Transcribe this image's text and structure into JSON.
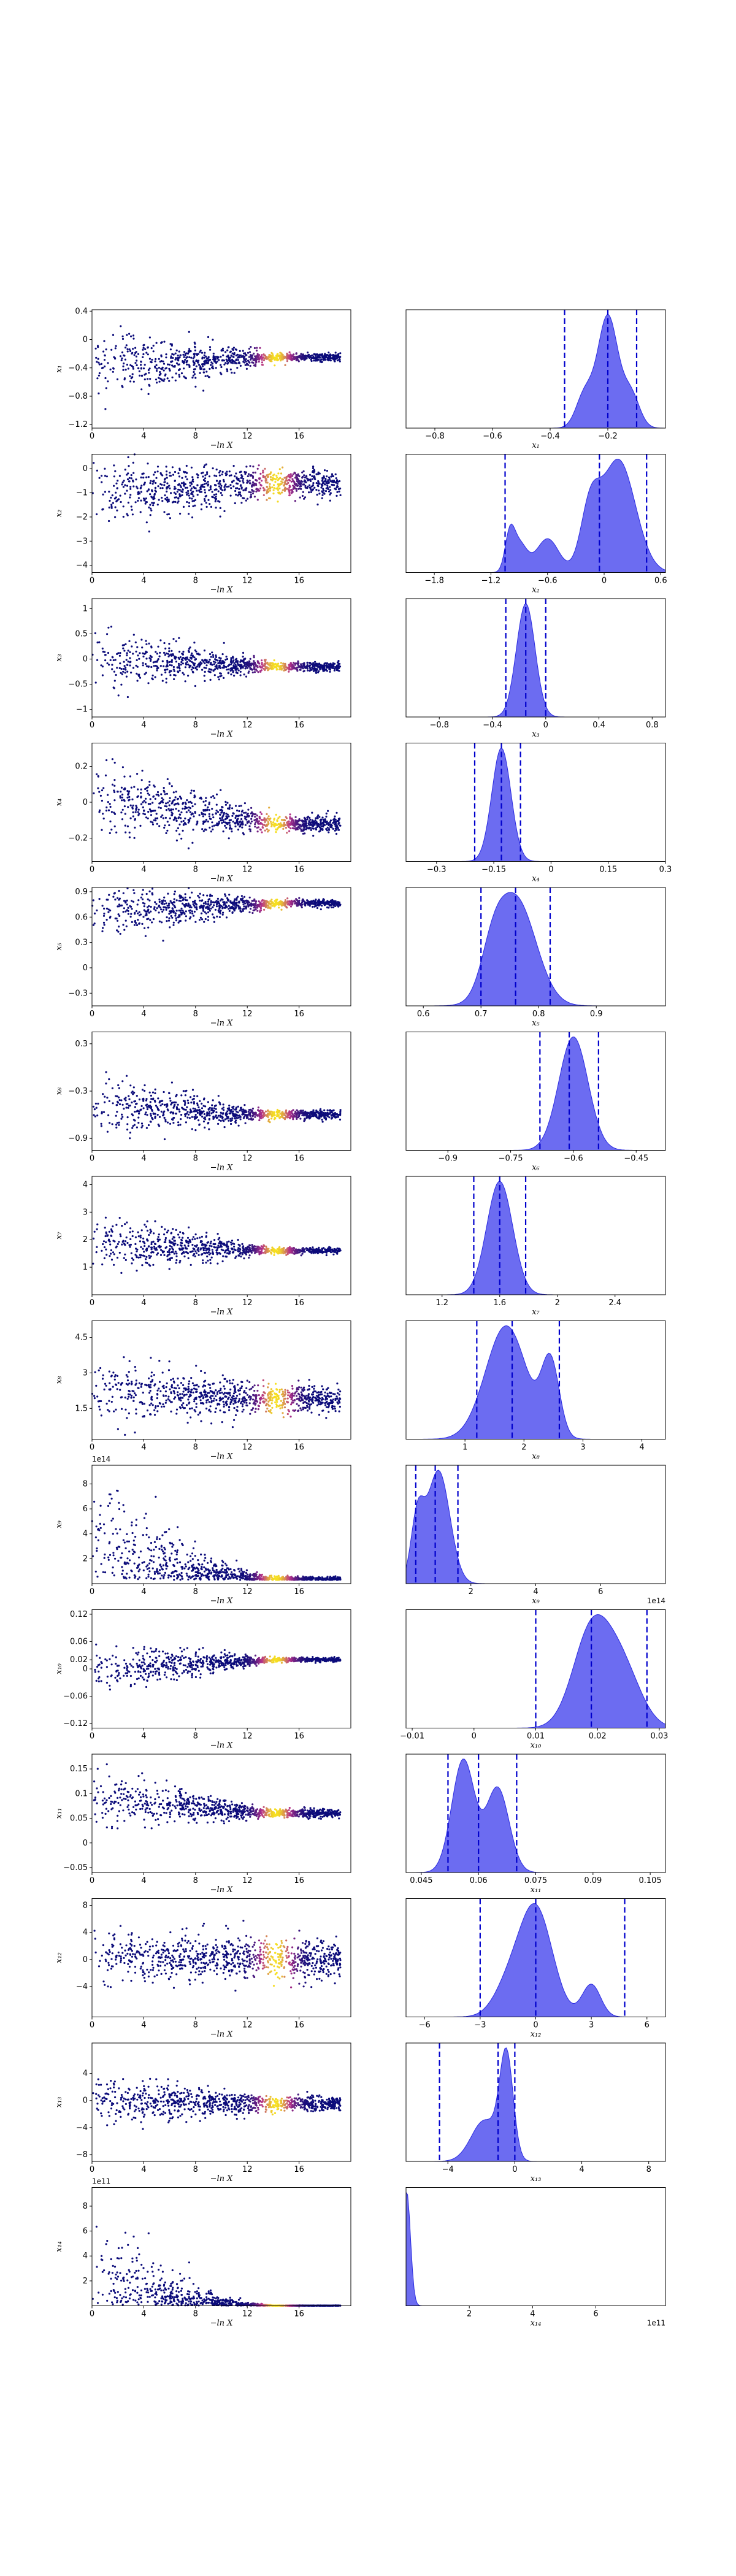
{
  "chart_data": {
    "type": "scatter",
    "description_layout": "14 rows; left = posterior samples vs -ln X (colored by weight), right = marginal density with quantile lines",
    "trace_xlabel": "−ln X",
    "trace_xlim": [
      0,
      20
    ],
    "trace_xticks": [
      "0",
      "4",
      "8",
      "12",
      "16"
    ],
    "colors": {
      "density_fill": "#6464f0",
      "density_edge": "#2a2ae0",
      "quantile_line": "#0000cc",
      "scatter_low": "#0b0b7a",
      "scatter_mid": "#b5318a",
      "scatter_high": "#f6e020"
    },
    "params": [
      {
        "ylabel": "x₁",
        "xlabel": "x₁",
        "exp_left": "",
        "exp_right": "",
        "yticks": [
          0.4,
          0.0,
          -0.4,
          -0.8,
          -1.2
        ],
        "ylim": [
          -1.25,
          0.42
        ],
        "xticks": [
          -0.8,
          -0.6,
          -0.4,
          -0.2
        ],
        "xlim": [
          -0.9,
          0.0
        ],
        "quantiles": [
          -0.35,
          -0.2,
          -0.1
        ],
        "center": -0.25,
        "spread_start": 0.45,
        "spread_end": 0.05,
        "early_center": -0.35,
        "peaks": [
          [
            -0.2,
            0.035,
            1.0
          ],
          [
            -0.28,
            0.03,
            0.3
          ],
          [
            -0.12,
            0.03,
            0.3
          ]
        ]
      },
      {
        "ylabel": "x₂",
        "xlabel": "x₂",
        "exp_left": "",
        "exp_right": "",
        "yticks": [
          0,
          -1,
          -2,
          -3,
          -4
        ],
        "ylim": [
          -4.3,
          0.6
        ],
        "xticks": [
          -1.8,
          -1.2,
          -0.6,
          0.0,
          0.6
        ],
        "xlim": [
          -2.1,
          0.65
        ],
        "quantiles": [
          -1.05,
          -0.05,
          0.45
        ],
        "center": -0.6,
        "spread_start": 1.3,
        "spread_end": 0.5,
        "early_center": -1.0,
        "peaks": [
          [
            0.15,
            0.18,
            1.0
          ],
          [
            -0.15,
            0.1,
            0.5
          ],
          [
            -0.6,
            0.12,
            0.3
          ],
          [
            -0.9,
            0.08,
            0.25
          ],
          [
            -1.0,
            0.05,
            0.3
          ]
        ]
      },
      {
        "ylabel": "x₃",
        "xlabel": "x₃",
        "exp_left": "",
        "exp_right": "",
        "yticks": [
          1.0,
          0.5,
          0.0,
          -0.5,
          -1.0
        ],
        "ylim": [
          -1.15,
          1.2
        ],
        "xticks": [
          -0.8,
          -0.4,
          0.0,
          0.4,
          0.8
        ],
        "xlim": [
          -1.05,
          0.9
        ],
        "quantiles": [
          -0.3,
          -0.15,
          0.0
        ],
        "center": -0.15,
        "spread_start": 0.55,
        "spread_end": 0.08,
        "early_center": 0.0,
        "peaks": [
          [
            -0.15,
            0.07,
            1.0
          ]
        ]
      },
      {
        "ylabel": "x₄",
        "xlabel": "x₄",
        "exp_left": "",
        "exp_right": "",
        "yticks": [
          0.2,
          0.0,
          -0.2
        ],
        "ylim": [
          -0.33,
          0.33
        ],
        "xticks": [
          -0.3,
          -0.15,
          0.0,
          0.15,
          0.3
        ],
        "xlim": [
          -0.38,
          0.3
        ],
        "quantiles": [
          -0.2,
          -0.13,
          -0.08
        ],
        "center": -0.12,
        "spread_start": 0.2,
        "spread_end": 0.04,
        "early_center": 0.02,
        "peaks": [
          [
            -0.13,
            0.025,
            1.0
          ]
        ]
      },
      {
        "ylabel": "x₅",
        "xlabel": "x₅",
        "exp_left": "",
        "exp_right": "",
        "yticks": [
          0.9,
          0.6,
          0.3,
          0.0,
          -0.3
        ],
        "ylim": [
          -0.45,
          0.95
        ],
        "xticks": [
          0.6,
          0.7,
          0.8,
          0.9
        ],
        "xlim": [
          0.57,
          1.02
        ],
        "quantiles": [
          0.7,
          0.76,
          0.82
        ],
        "center": 0.76,
        "spread_start": 0.3,
        "spread_end": 0.04,
        "early_center": 0.65,
        "peaks": [
          [
            0.76,
            0.035,
            1.0
          ],
          [
            0.72,
            0.02,
            0.3
          ]
        ]
      },
      {
        "ylabel": "x₆",
        "xlabel": "x₆",
        "exp_left": "",
        "exp_right": "",
        "yticks": [
          0.3,
          -0.3,
          -0.9
        ],
        "ylim": [
          -1.05,
          0.45
        ],
        "xticks": [
          -0.9,
          -0.75,
          -0.6,
          -0.45
        ],
        "xlim": [
          -1.0,
          -0.38
        ],
        "quantiles": [
          -0.68,
          -0.61,
          -0.54
        ],
        "center": -0.6,
        "spread_start": 0.35,
        "spread_end": 0.05,
        "early_center": -0.5,
        "peaks": [
          [
            -0.6,
            0.035,
            1.0
          ]
        ]
      },
      {
        "ylabel": "x₇",
        "xlabel": "x₇",
        "exp_left": "",
        "exp_right": "",
        "yticks": [
          4,
          3,
          2,
          1
        ],
        "ylim": [
          0.0,
          4.3
        ],
        "xticks": [
          1.2,
          1.6,
          2.0,
          2.4
        ],
        "xlim": [
          0.95,
          2.75
        ],
        "quantiles": [
          1.42,
          1.6,
          1.78
        ],
        "center": 1.6,
        "spread_start": 0.9,
        "spread_end": 0.1,
        "early_center": 1.9,
        "peaks": [
          [
            1.6,
            0.09,
            1.0
          ]
        ]
      },
      {
        "ylabel": "x₈",
        "xlabel": "x₈",
        "exp_left": "",
        "exp_right": "",
        "yticks": [
          4.5,
          3.0,
          1.5
        ],
        "ylim": [
          0.2,
          5.2
        ],
        "xticks": [
          1,
          2,
          3,
          4
        ],
        "xlim": [
          0.0,
          4.4
        ],
        "quantiles": [
          1.2,
          1.8,
          2.6
        ],
        "center": 1.9,
        "spread_start": 1.2,
        "spread_end": 0.5,
        "early_center": 2.3,
        "peaks": [
          [
            1.7,
            0.35,
            1.0
          ],
          [
            2.45,
            0.15,
            0.65
          ]
        ]
      },
      {
        "ylabel": "x₉",
        "xlabel": "x₉",
        "exp_left": "1e14",
        "exp_right": "1e14",
        "yticks": [
          8,
          6,
          4,
          2
        ],
        "ylim": [
          0.0,
          9.5
        ],
        "xticks": [
          2,
          4,
          6
        ],
        "xlim": [
          0.0,
          8.0
        ],
        "quantiles": [
          0.3,
          0.9,
          1.6
        ],
        "center": 1.0,
        "spread_start": 2.5,
        "spread_end": 0.4,
        "early_center": 1.5,
        "positive": true,
        "peaks": [
          [
            1.0,
            0.35,
            1.0
          ],
          [
            0.35,
            0.2,
            0.55
          ]
        ]
      },
      {
        "ylabel": "x₁₀",
        "xlabel": "x₁₀",
        "exp_left": "",
        "exp_right": "",
        "yticks": [
          0.12,
          0.06,
          0.02,
          0.0,
          -0.06,
          -0.12
        ],
        "ylim": [
          -0.13,
          0.13
        ],
        "xticks": [
          -0.01,
          0.0,
          0.01,
          0.02,
          0.03
        ],
        "xlim": [
          -0.011,
          0.031
        ],
        "quantiles": [
          0.01,
          0.019,
          0.028
        ],
        "center": 0.02,
        "spread_start": 0.05,
        "spread_end": 0.004,
        "early_center": 0.0,
        "peaks": [
          [
            0.019,
            0.003,
            1.0
          ],
          [
            0.024,
            0.003,
            0.6
          ]
        ]
      },
      {
        "ylabel": "x₁₁",
        "xlabel": "x₁₁",
        "exp_left": "",
        "exp_right": "",
        "yticks": [
          0.15,
          0.1,
          0.05,
          0.0,
          -0.05
        ],
        "ylim": [
          -0.06,
          0.18
        ],
        "xticks": [
          0.045,
          0.06,
          0.075,
          0.09,
          0.105
        ],
        "xlim": [
          0.041,
          0.109
        ],
        "quantiles": [
          0.052,
          0.06,
          0.07
        ],
        "center": 0.06,
        "spread_start": 0.05,
        "spread_end": 0.008,
        "early_center": 0.09,
        "peaks": [
          [
            0.056,
            0.003,
            1.0
          ],
          [
            0.065,
            0.003,
            0.75
          ]
        ]
      },
      {
        "ylabel": "x₁₂",
        "xlabel": "x₁₂",
        "exp_left": "",
        "exp_right": "",
        "yticks": [
          8,
          4,
          0,
          -4
        ],
        "ylim": [
          -8.5,
          9.0
        ],
        "xticks": [
          -6,
          -3,
          0,
          3,
          6
        ],
        "xlim": [
          -7.0,
          7.0
        ],
        "quantiles": [
          -3.0,
          0.0,
          4.8
        ],
        "center": 0.0,
        "spread_start": 3.5,
        "spread_end": 2.5,
        "early_center": 0.5,
        "peaks": [
          [
            0.0,
            0.9,
            1.0
          ],
          [
            3.0,
            0.5,
            0.3
          ],
          [
            -1.5,
            0.8,
            0.25
          ]
        ]
      },
      {
        "ylabel": "x₁₃",
        "xlabel": "x₁₃",
        "exp_left": "",
        "exp_right": "",
        "yticks": [
          4,
          0,
          -4,
          -8
        ],
        "ylim": [
          -9.0,
          8.5
        ],
        "xticks": [
          -4,
          0,
          4,
          8
        ],
        "xlim": [
          -6.5,
          9.0
        ],
        "quantiles": [
          -4.5,
          -1.0,
          0.0
        ],
        "center": -0.5,
        "spread_start": 3.5,
        "spread_end": 1.0,
        "early_center": 0.0,
        "peaks": [
          [
            -0.5,
            0.4,
            1.0
          ],
          [
            -1.8,
            0.8,
            0.4
          ]
        ]
      },
      {
        "ylabel": "x₁₄",
        "xlabel": "x₁₄",
        "exp_left": "1e11",
        "exp_right": "1e11",
        "yticks": [
          8,
          6,
          4,
          2
        ],
        "ylim": [
          0.0,
          9.5
        ],
        "xticks": [
          2,
          4,
          6
        ],
        "xlim": [
          0.0,
          8.2
        ],
        "quantiles": [],
        "center": 0.05,
        "spread_start": 2.0,
        "spread_end": 0.02,
        "early_center": 0.2,
        "positive": true,
        "peaks": [
          [
            0.02,
            0.12,
            1.0
          ]
        ]
      }
    ]
  }
}
